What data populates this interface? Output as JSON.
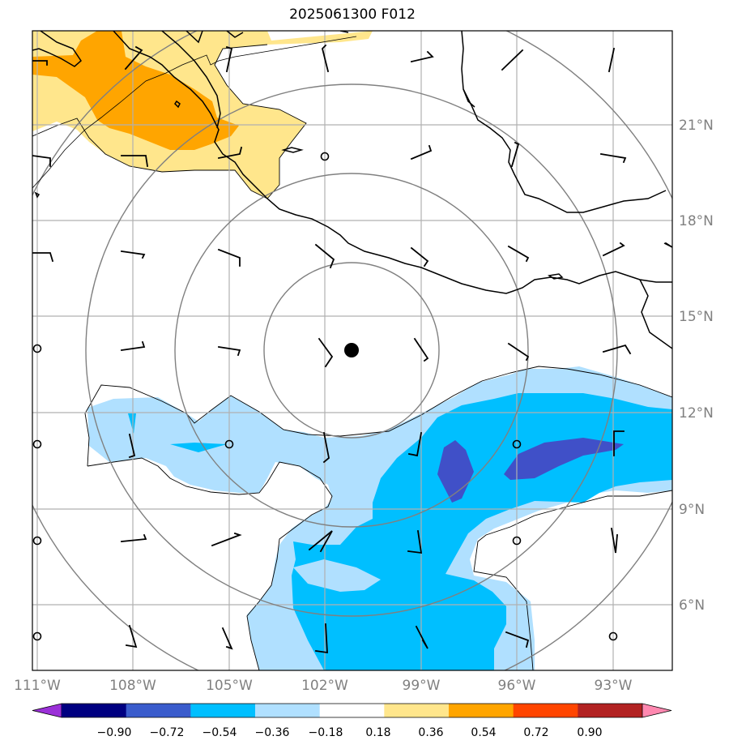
{
  "title": "2025061300 F012",
  "map": {
    "lon_range": [
      -111.1,
      -91.1
    ],
    "lat_range": [
      3.6,
      23.6
    ],
    "lon_ticks": [
      "111°W",
      "108°W",
      "105°W",
      "102°W",
      "99°W",
      "96°W",
      "93°W"
    ],
    "lat_ticks": [
      "21°N",
      "18°N",
      "15°N",
      "12°N",
      "9°N",
      "6°N"
    ],
    "center_marker": {
      "lon": -101.3,
      "lat": 13.9
    },
    "range_rings": 4,
    "grid": true,
    "coastlines": true,
    "wind_barbs": true
  },
  "shading_colors": {
    "neg_strong": "#4050c8",
    "neg_mid": "#00bfff",
    "neg_light": "#b0e0ff",
    "pos_light": "#ffe68c",
    "pos_mid": "#ffa500"
  },
  "colorbar": {
    "labels": [
      "−0.90",
      "−0.72",
      "−0.54",
      "−0.36",
      "−0.18",
      "0.18",
      "0.36",
      "0.54",
      "0.72",
      "0.90"
    ],
    "colors": [
      "#9b30d8",
      "#000080",
      "#3a5ccc",
      "#00bfff",
      "#b0e0ff",
      "#ffffff",
      "#ffe68c",
      "#ffa500",
      "#ff4500",
      "#b22222",
      "#ff88b0"
    ]
  }
}
